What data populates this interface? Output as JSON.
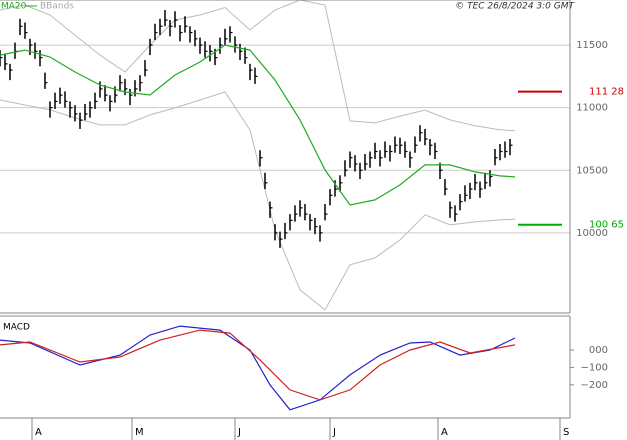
{
  "source": "© TEC 26/8/2024 3:0 GMT",
  "chart_data": [
    {
      "type": "hlc",
      "xlim": [
        0,
        114
      ],
      "ylim": [
        9360,
        11860
      ],
      "yticks": [
        10000,
        10500,
        11000,
        11500
      ],
      "grid": true,
      "price": {
        "color": "#000000",
        "high": [
          11460,
          11430,
          11350,
          11520,
          11710,
          11680,
          11550,
          11520,
          11460,
          11280,
          11050,
          11120,
          11160,
          11130,
          11050,
          11020,
          10960,
          11030,
          11050,
          11120,
          11210,
          11180,
          11100,
          11170,
          11260,
          11230,
          11150,
          11220,
          11260,
          11380,
          11550,
          11670,
          11710,
          11780,
          11700,
          11770,
          11660,
          11730,
          11650,
          11620,
          11560,
          11530,
          11500,
          11470,
          11560,
          11630,
          11650,
          11570,
          11510,
          11480,
          11350,
          11320,
          10660,
          10480,
          10250,
          10070,
          10010,
          10080,
          10150,
          10220,
          10260,
          10230,
          10150,
          10120,
          10060,
          10230,
          10350,
          10420,
          10460,
          10580,
          10650,
          10620,
          10560,
          10630,
          10650,
          10720,
          10660,
          10730,
          10700,
          10770,
          10760,
          10730,
          10650,
          10770,
          10860,
          10830,
          10750,
          10720,
          10560,
          10430,
          10250,
          10220,
          10310,
          10380,
          10400,
          10470,
          10410,
          10480,
          10500,
          10670,
          10710,
          10730,
          10750
        ],
        "low": [
          11330,
          11300,
          11220,
          11390,
          11580,
          11550,
          11420,
          11390,
          11330,
          11150,
          10920,
          10990,
          11030,
          11000,
          10920,
          10890,
          10830,
          10900,
          10920,
          10990,
          11080,
          11050,
          10970,
          11040,
          11130,
          11100,
          11020,
          11090,
          11130,
          11250,
          11420,
          11540,
          11580,
          11650,
          11570,
          11640,
          11530,
          11600,
          11520,
          11490,
          11430,
          11400,
          11370,
          11340,
          11430,
          11500,
          11520,
          11440,
          11380,
          11350,
          11220,
          11190,
          10530,
          10350,
          10120,
          9940,
          9880,
          9950,
          10020,
          10090,
          10130,
          10100,
          10020,
          9990,
          9930,
          10100,
          10220,
          10290,
          10330,
          10450,
          10520,
          10490,
          10430,
          10500,
          10520,
          10590,
          10530,
          10600,
          10570,
          10640,
          10630,
          10600,
          10520,
          10640,
          10730,
          10700,
          10620,
          10590,
          10430,
          10300,
          10120,
          10090,
          10180,
          10250,
          10270,
          10340,
          10280,
          10350,
          10370,
          10540,
          10580,
          10600,
          10620
        ],
        "close": [
          11400,
          11350,
          11300,
          11450,
          11650,
          11600,
          11500,
          11450,
          11400,
          11200,
          11000,
          11050,
          11100,
          11050,
          11000,
          10950,
          10900,
          10950,
          11000,
          11050,
          11150,
          11100,
          11050,
          11100,
          11200,
          11150,
          11100,
          11150,
          11200,
          11300,
          11500,
          11600,
          11650,
          11700,
          11650,
          11700,
          11600,
          11650,
          11600,
          11550,
          11500,
          11450,
          11450,
          11400,
          11500,
          11550,
          11600,
          11500,
          11450,
          11400,
          11300,
          11250,
          10600,
          10400,
          10200,
          10000,
          9950,
          10000,
          10100,
          10150,
          10200,
          10150,
          10100,
          10050,
          10000,
          10150,
          10300,
          10350,
          10400,
          10500,
          10600,
          10550,
          10500,
          10550,
          10600,
          10650,
          10600,
          10650,
          10650,
          10700,
          10700,
          10650,
          10600,
          10700,
          10800,
          10750,
          10700,
          10650,
          10500,
          10350,
          10200,
          10150,
          10250,
          10300,
          10350,
          10400,
          10350,
          10400,
          10450,
          10600,
          10650,
          10650,
          10700
        ]
      },
      "ma": {
        "name": "MA20",
        "color": "#22aa22",
        "x": [
          0,
          5,
          10,
          15,
          20,
          25,
          30,
          35,
          40,
          45,
          50,
          55,
          60,
          65,
          70,
          75,
          80,
          85,
          90,
          95,
          100,
          103
        ],
        "values": [
          11420,
          11460,
          11405,
          11285,
          11181,
          11125,
          11101,
          11261,
          11365,
          11500,
          11460,
          11221,
          10902,
          10503,
          10223,
          10263,
          10383,
          10543,
          10543,
          10487,
          10455,
          10447
        ]
      },
      "bands": {
        "name": "BBands",
        "color": "#bbbbbb",
        "x": [
          0,
          5,
          10,
          15,
          20,
          25,
          30,
          35,
          40,
          45,
          50,
          55,
          60,
          65,
          70,
          75,
          80,
          85,
          90,
          95,
          100,
          103
        ],
        "upper": [
          11780,
          11820,
          11740,
          11580,
          11420,
          11285,
          11500,
          11700,
          11740,
          11800,
          11620,
          11780,
          11860,
          11820,
          10894,
          10878,
          10933,
          10980,
          10902,
          10855,
          10823,
          10815
        ],
        "lower": [
          11061,
          11021,
          10982,
          10918,
          10862,
          10862,
          10942,
          10998,
          11061,
          11125,
          10822,
          10024,
          9545,
          9385,
          9745,
          9800,
          9944,
          10144,
          10064,
          10088,
          10104,
          10110
        ]
      },
      "levels": [
        {
          "value": 11128,
          "label": "111 28",
          "color": "#cc0000"
        },
        {
          "value": 10065,
          "label": "100 65",
          "color": "#00aa00"
        }
      ]
    },
    {
      "type": "line",
      "title": "MACD",
      "xlim": [
        0,
        114
      ],
      "ylim": [
        -390,
        195
      ],
      "yticks": [
        {
          "value": 0,
          "label": "000"
        },
        {
          "value": -100,
          "label": "−100"
        },
        {
          "value": -200,
          "label": "−200"
        }
      ],
      "xticks": [
        {
          "value": 6.4,
          "label": "A"
        },
        {
          "value": 26.4,
          "label": "M"
        },
        {
          "value": 47,
          "label": "J"
        },
        {
          "value": 66,
          "label": "J"
        },
        {
          "value": 87.6,
          "label": "A"
        },
        {
          "value": 112,
          "label": "S"
        }
      ],
      "series": [
        {
          "color": "#2222cc",
          "x": [
            0,
            6,
            16,
            24,
            30,
            36,
            44,
            50,
            54,
            58,
            64,
            70,
            76,
            82,
            86,
            92,
            98,
            103
          ],
          "values": [
            57,
            40,
            -86,
            -29,
            86,
            137,
            114,
            0,
            -200,
            -343,
            -286,
            -143,
            -29,
            40,
            46,
            -29,
            0,
            69
          ]
        },
        {
          "color": "#cc2222",
          "x": [
            0,
            6,
            16,
            24,
            32,
            40,
            46,
            52,
            58,
            64,
            70,
            76,
            82,
            88,
            94,
            103
          ],
          "values": [
            29,
            46,
            -69,
            -40,
            57,
            114,
            97,
            -57,
            -229,
            -286,
            -229,
            -86,
            0,
            46,
            -17,
            29
          ]
        }
      ]
    }
  ]
}
